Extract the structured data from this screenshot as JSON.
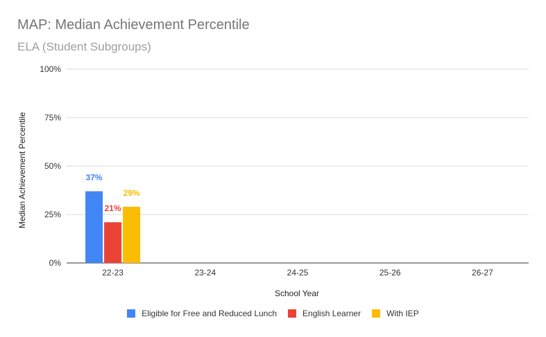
{
  "chart_data": {
    "type": "bar",
    "title": "MAP: Median Achievement Percentile",
    "subtitle": "ELA (Student Subgroups)",
    "xlabel": "School Year",
    "ylabel": "Median Achievement Percentile",
    "categories": [
      "22-23",
      "23-24",
      "24-25",
      "25-26",
      "26-27"
    ],
    "ylim": [
      0,
      100
    ],
    "yticks": [
      0,
      25,
      50,
      75,
      100
    ],
    "ytick_labels": [
      "0%",
      "25%",
      "50%",
      "75%",
      "100%"
    ],
    "grid": true,
    "legend_position": "bottom",
    "series": [
      {
        "name": "Eligible for Free and Reduced Lunch",
        "color": "#4285f4",
        "values": [
          37,
          null,
          null,
          null,
          null
        ],
        "labels": [
          "37%",
          null,
          null,
          null,
          null
        ]
      },
      {
        "name": "English Learner",
        "color": "#ea4335",
        "values": [
          21,
          null,
          null,
          null,
          null
        ],
        "labels": [
          "21%",
          null,
          null,
          null,
          null
        ]
      },
      {
        "name": "With IEP",
        "color": "#fbbc04",
        "values": [
          29,
          null,
          null,
          null,
          null
        ],
        "labels": [
          "29%",
          null,
          null,
          null,
          null
        ]
      }
    ]
  }
}
